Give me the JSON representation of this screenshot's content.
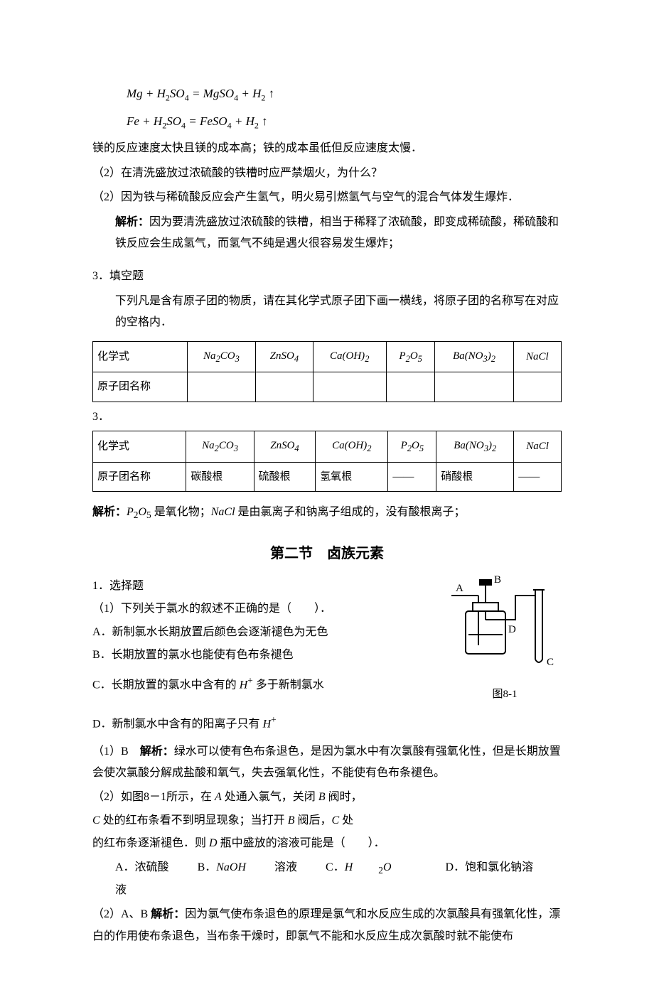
{
  "eq1_html": "Mg + H<sub>2</sub>SO<sub>4</sub> = MgSO<sub>4</sub> + H<sub>2</sub> ↑",
  "eq2_html": "Fe + H<sub>2</sub>SO<sub>4</sub> = FeSO<sub>4</sub> + H<sub>2</sub> ↑",
  "line_mg_reason": "镁的反应速度太快且镁的成本高；铁的成本虽低但反应速度太慢．",
  "q2_prompt": "（2）在清洗盛放过浓硫酸的铁槽时应严禁烟火，为什么？",
  "q2_answer": "（2）因为铁与稀硫酸反应会产生氢气，明火易引燃氢气与空气的混合气体发生爆炸．",
  "q2_analysis_label": "解析：",
  "q2_analysis": "因为要清洗盛放过浓硫酸的铁槽，相当于稀释了浓硫酸，即变成稀硫酸，稀硫酸和铁反应会生成氢气，而氢气不纯是遇火很容易发生爆炸；",
  "q3_heading": "3．填空题",
  "q3_prompt": "下列凡是含有原子团的物质，请在其化学式原子团下画一横线，将原子团的名称写在对应的空格内．",
  "table_headers": {
    "col1": "化学式",
    "col2": "原子团名称"
  },
  "formulas": {
    "a_html": "Na<sub>2</sub>CO<sub>3</sub>",
    "b_html": "ZnSO<sub>4</sub>",
    "c_html": "Ca(OH)<sub>2</sub>",
    "d_html": "P<sub>2</sub>O<sub>5</sub>",
    "e_html": "Ba(NO<sub>3</sub>)<sub>2</sub>",
    "f_html": "NaCl"
  },
  "answer_row_label": "3．",
  "group_names": {
    "a": "碳酸根",
    "b": "硫酸根",
    "c": "氢氧根",
    "d": "——",
    "e": "硝酸根",
    "f": "——"
  },
  "q3_analysis_label": "解析：",
  "q3_analysis_html": "<span class=\"italic-var\">P</span><sub>2</sub><span class=\"italic-var\">O</span><sub>5</sub> 是氧化物；<span class=\"italic-var\">NaCl</span> 是由氯离子和钠离子组成的，没有酸根离子；",
  "section2_title": "第二节　卤族元素",
  "s2_q1_heading": "1．选择题",
  "s2_q1_stem": "（1）下列关于氯水的叙述不正确的是（　　）．",
  "s2_q1_A": "A．新制氯水长期放置后颜色会逐渐褪色为无色",
  "s2_q1_B": "B．长期放置的氯水也能使有色布条褪色",
  "s2_q1_C_html": "C．长期放置的氯水中含有的 <span class=\"italic-var\">H</span><sup>+</sup> 多于新制氯水",
  "s2_q1_D_html": "D．新制氯水中含有的阳离子只有 <span class=\"italic-var\">H</span><sup>+</sup>",
  "s2_q1_ans_prefix": "（1）B　",
  "s2_q1_ans_label": "解析：",
  "s2_q1_ans": "绿水可以使有色布条退色，是因为氯水中有次氯酸有强氧化性，但是长期放置会使次氯酸分解成盐酸和氧气，失去强氧化性，不能使有色布条褪色。",
  "s2_q2_l1_html": "（2）如图8－1所示，在 <span class=\"italic-var\">A</span> 处通入氯气，关闭 <span class=\"italic-var\">B</span> 阀时，",
  "s2_q2_l2_html": "<span class=\"italic-var\">C</span> 处的红布条看不到明显现象；当打开 <span class=\"italic-var\">B</span> 阀后，<span class=\"italic-var\">C</span> 处",
  "s2_q2_l3_html": "的红布条逐渐褪色．则 <span class=\"italic-var\">D</span> 瓶中盛放的溶液可能是（　　）．",
  "s2_q2_options": {
    "A": "A．浓硫酸",
    "B_html": "B．<span class=\"italic-var\">NaOH</span> 溶液",
    "C_html": "C．<span class=\"italic-var\">H</span><sub>2</sub><span class=\"italic-var\">O</span>",
    "D": "D．饱和氯化钠溶液"
  },
  "s2_q2_ans_prefix": "（2）A、B  ",
  "s2_q2_ans_label": "解析：",
  "s2_q2_ans": "因为氯气使布条退色的原理是氯气和水反应生成的次氯酸具有强氧化性，漂白的作用使布条退色，当布条干燥时，即氯气不能和水反应生成次氯酸时就不能使布",
  "figure": {
    "caption": "图8-1",
    "labels": {
      "A": "A",
      "B": "B",
      "C": "C",
      "D": "D"
    },
    "colors": {
      "stroke": "#000000",
      "fill": "#ffffff"
    }
  }
}
